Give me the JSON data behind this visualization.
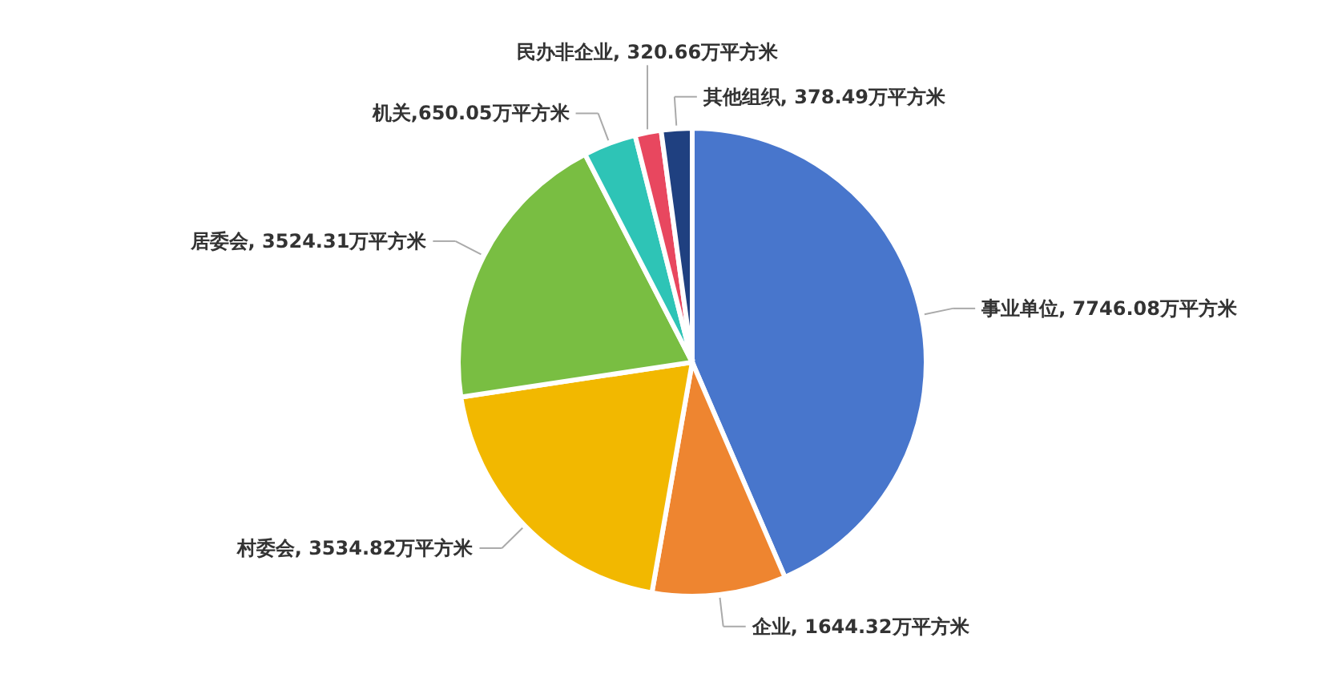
{
  "chart_data": {
    "type": "pie",
    "categories": [
      "事业单位",
      "企业",
      "村委会",
      "居委会",
      "机关",
      "民办非企业",
      "其他组织"
    ],
    "values": [
      7746.08,
      1644.32,
      3534.82,
      3524.31,
      650.05,
      320.66,
      378.49
    ],
    "colors": [
      "#4876cc",
      "#ee8530",
      "#f2b800",
      "#79be42",
      "#2ec4b6",
      "#e8475f",
      "#1f4080"
    ],
    "value_labels": [
      ", 7746.08万平方米",
      ", 1644.32万平方米",
      ", 3534.82万平方米",
      ", 3524.31万平方米",
      ",650.05万平方米",
      ", 320.66万平方米",
      ", 378.49万平方米"
    ]
  }
}
